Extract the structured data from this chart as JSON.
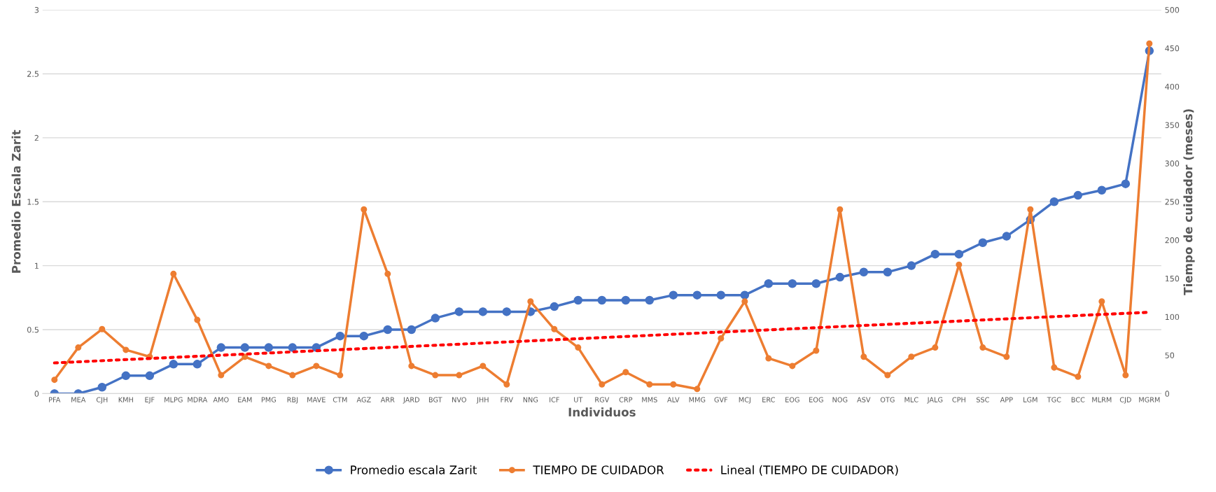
{
  "chart_data": {
    "type": "line",
    "xlabel": "Individuos",
    "ylabel": "Promedio Escala Zarit",
    "y2label": "Tiempo de cuidador (meses)",
    "categories": [
      "PFA",
      "MEA",
      "CJH",
      "KMH",
      "EJF",
      "MLPG",
      "MDRA",
      "AMO",
      "EAM",
      "PMG",
      "RBJ",
      "MAVE",
      "CTM",
      "AGZ",
      "ARR",
      "JARD",
      "BGT",
      "NVO",
      "JHH",
      "FRV",
      "NNG",
      "ICF",
      "UT",
      "RGV",
      "CRP",
      "MMS",
      "ALV",
      "MMG",
      "GVF",
      "MCJ",
      "ERC",
      "EOG",
      "EOG",
      "NOG",
      "ASV",
      "OTG",
      "MLC",
      "JALG",
      "CPH",
      "SSC",
      "APP",
      "LGM",
      "TGC",
      "BCC",
      "MLRM",
      "CJD",
      "MGRM"
    ],
    "series": [
      {
        "name": "Promedio escala Zarit",
        "color": "#4472c4",
        "marker": "circle",
        "values": [
          0,
          0,
          0.05,
          0.14,
          0.14,
          0.23,
          0.23,
          0.36,
          0.36,
          0.36,
          0.36,
          0.36,
          0.45,
          0.45,
          0.5,
          0.5,
          0.59,
          0.64,
          0.64,
          0.64,
          0.64,
          0.68,
          0.73,
          0.73,
          0.73,
          0.73,
          0.77,
          0.77,
          0.77,
          0.77,
          0.86,
          0.86,
          0.86,
          0.91,
          0.95,
          0.95,
          1.0,
          1.09,
          1.09,
          1.18,
          1.23,
          1.36,
          1.5,
          1.55,
          1.59,
          1.64,
          2.68
        ]
      },
      {
        "name": "TIEMPO DE CUIDADOR",
        "color": "#ed7d31",
        "marker": "circle",
        "axis": "y2",
        "values": [
          18,
          60,
          84,
          57,
          48,
          156,
          96,
          24,
          48,
          36,
          24,
          36,
          24,
          240,
          156,
          36,
          24,
          24,
          36,
          12,
          120,
          84,
          60,
          12,
          28,
          12,
          12,
          6,
          72,
          120,
          46,
          36,
          56,
          240,
          48,
          24,
          48,
          60,
          168,
          60,
          48,
          240,
          34,
          22,
          120,
          24,
          456
        ]
      },
      {
        "name": "Lineal (TIEMPO DE CUIDADOR)",
        "color": "#ff0000",
        "marker": "none",
        "line_style": "dotted",
        "axis": "y2",
        "values": [
          40,
          null,
          null,
          null,
          null,
          null,
          null,
          null,
          null,
          null,
          null,
          null,
          null,
          null,
          null,
          null,
          null,
          null,
          null,
          null,
          null,
          null,
          null,
          null,
          null,
          null,
          null,
          null,
          null,
          null,
          null,
          null,
          null,
          null,
          null,
          null,
          null,
          null,
          null,
          null,
          null,
          null,
          null,
          null,
          null,
          null,
          106
        ]
      }
    ],
    "ylim": [
      0,
      3
    ],
    "yticks": [
      0,
      0.5,
      1,
      1.5,
      2,
      2.5,
      3
    ],
    "y2lim": [
      0,
      500
    ],
    "y2ticks": [
      0,
      50,
      100,
      150,
      200,
      250,
      300,
      350,
      400,
      450,
      500
    ],
    "grid": "y",
    "legend": "bottom"
  }
}
